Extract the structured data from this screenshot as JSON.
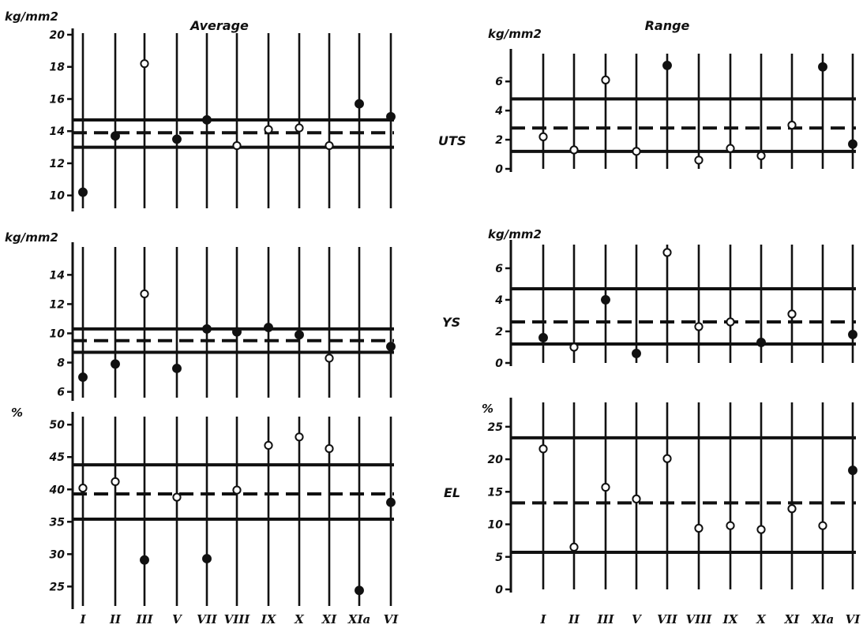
{
  "categories": [
    "I",
    "II",
    "III",
    "V",
    "VII",
    "VIII",
    "IX",
    "X",
    "XI",
    "XIa",
    "VI"
  ],
  "chart_data": [
    {
      "type": "scatter",
      "panel": "average-uts",
      "title": "Average",
      "unit": "kg/mm2",
      "row_label": "",
      "ylim": [
        9.2,
        20
      ],
      "yticks": [
        10,
        12,
        14,
        16,
        18,
        20
      ],
      "values": [
        10.2,
        13.7,
        18.2,
        13.5,
        14.7,
        13.1,
        14.1,
        14.2,
        13.1,
        15.7,
        14.9
      ],
      "filled": [
        true,
        true,
        false,
        true,
        true,
        false,
        false,
        false,
        false,
        true,
        true
      ],
      "limits": {
        "upper": 14.7,
        "center": 13.9,
        "lower": 13.0
      }
    },
    {
      "type": "scatter",
      "panel": "range-uts",
      "title": "Range",
      "unit": "kg/mm2",
      "row_label": "UTS",
      "ylim": [
        0,
        7.8
      ],
      "yticks": [
        0,
        2,
        4,
        6
      ],
      "values": [
        2.2,
        1.3,
        6.1,
        1.2,
        7.1,
        0.6,
        1.4,
        0.9,
        3.0,
        7.0,
        1.7
      ],
      "filled": [
        false,
        false,
        false,
        false,
        true,
        false,
        false,
        false,
        false,
        true,
        true
      ],
      "limits": {
        "upper": 4.8,
        "center": 2.8,
        "lower": 1.2
      }
    },
    {
      "type": "scatter",
      "panel": "average-ys",
      "title": "",
      "unit": "kg/mm2",
      "row_label": "",
      "ylim": [
        5.6,
        15.8
      ],
      "yticks": [
        6,
        8,
        10,
        12,
        14
      ],
      "values": [
        7.0,
        7.9,
        12.7,
        7.6,
        10.3,
        10.1,
        10.4,
        9.9,
        8.3,
        null,
        9.1
      ],
      "filled": [
        true,
        true,
        false,
        true,
        true,
        true,
        true,
        true,
        false,
        false,
        true
      ],
      "limits": {
        "upper": 10.3,
        "center": 9.5,
        "lower": 8.7
      }
    },
    {
      "type": "scatter",
      "panel": "range-ys",
      "title": "",
      "unit": "kg/mm2",
      "row_label": "YS",
      "ylim": [
        0,
        7.4
      ],
      "yticks": [
        0,
        2,
        4,
        6
      ],
      "values": [
        1.6,
        1.0,
        4.0,
        0.6,
        7.0,
        2.3,
        2.6,
        1.3,
        3.1,
        null,
        1.8
      ],
      "filled": [
        true,
        false,
        true,
        true,
        false,
        false,
        false,
        true,
        false,
        false,
        true
      ],
      "limits": {
        "upper": 4.7,
        "center": 2.6,
        "lower": 1.2
      }
    },
    {
      "type": "scatter",
      "panel": "average-el",
      "title": "",
      "unit": "%",
      "row_label": "",
      "ylim": [
        22,
        51
      ],
      "yticks": [
        25,
        30,
        35,
        40,
        45,
        50
      ],
      "values": [
        40.2,
        41.2,
        29.1,
        38.8,
        29.3,
        39.9,
        46.8,
        48.1,
        46.3,
        24.4,
        38.0
      ],
      "filled": [
        false,
        false,
        true,
        false,
        true,
        false,
        false,
        false,
        false,
        true,
        true
      ],
      "limits": {
        "upper": 43.8,
        "center": 39.3,
        "lower": 35.4
      }
    },
    {
      "type": "scatter",
      "panel": "range-el",
      "title": "",
      "unit": "%",
      "row_label": "EL",
      "ylim": [
        0,
        28.5
      ],
      "yticks": [
        0,
        5,
        10,
        15,
        20,
        25
      ],
      "values": [
        21.6,
        6.5,
        15.7,
        13.9,
        20.1,
        9.4,
        9.8,
        9.2,
        12.4,
        9.8,
        18.3
      ],
      "filled": [
        false,
        false,
        false,
        false,
        false,
        false,
        false,
        false,
        false,
        false,
        true
      ],
      "limits": {
        "upper": 23.3,
        "center": 13.3,
        "lower": 5.7
      }
    }
  ]
}
